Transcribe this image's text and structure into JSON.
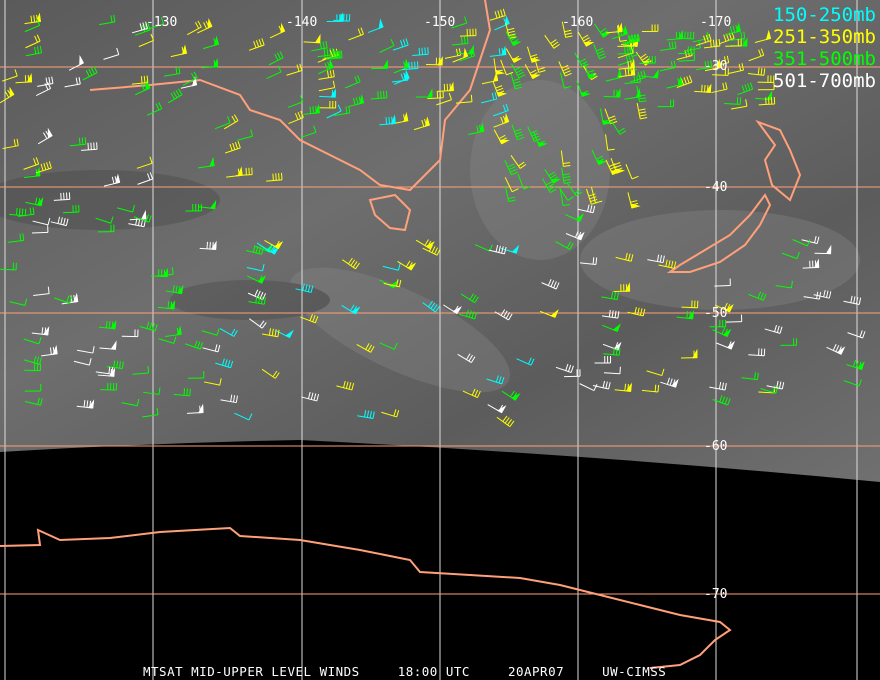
{
  "legend": [
    {
      "label": "150-250mb",
      "color": "#00ffff"
    },
    {
      "label": "251-350mb",
      "color": "#ffff00"
    },
    {
      "label": "351-500mb",
      "color": "#00ff00"
    },
    {
      "label": "501-700mb",
      "color": "#ffffff"
    }
  ],
  "longitude_labels": [
    "-130",
    "-140",
    "-150",
    "-160",
    "-170"
  ],
  "latitude_labels": [
    "-30",
    "-40",
    "-50",
    "-60",
    "-70"
  ],
  "footer": {
    "product": "MTSAT MID-UPPER LEVEL WINDS",
    "time": "18:00 UTC",
    "date": "20APR07",
    "source": "UW-CIMSS"
  },
  "colors": {
    "coastline": "#ffa07a",
    "grid": "#ffa07a",
    "background": "#000000"
  }
}
